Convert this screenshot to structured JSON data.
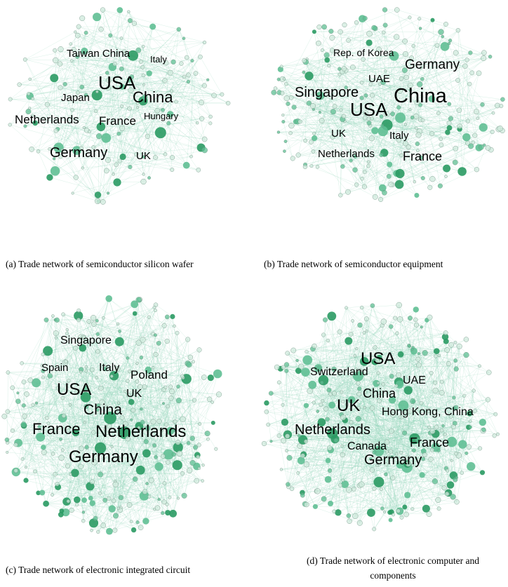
{
  "colors": {
    "edge": "#8fd3b6",
    "node_dark": "#2a9a63",
    "node_mid": "#5fbf93",
    "node_light": "#cfe9dc",
    "background": "#ffffff"
  },
  "panels": [
    {
      "caption": "(a) Trade network of semiconductor silicon wafer",
      "labels": [
        "Taiwan China",
        "Italy",
        "USA",
        "China",
        "Japan",
        "Hungary",
        "Netherlands",
        "France",
        "Germany",
        "UK"
      ]
    },
    {
      "caption": "(b) Trade network of semiconductor equipment",
      "labels": [
        "Rep. of Korea",
        "Germany",
        "UAE",
        "Singapore",
        "China",
        "USA",
        "UK",
        "Italy",
        "Netherlands",
        "France"
      ]
    },
    {
      "caption": "(c) Trade network of electronic integrated circuit",
      "labels": [
        "Singapore",
        "Spain",
        "Italy",
        "Poland",
        "USA",
        "UK",
        "China",
        "France",
        "Netherlands",
        "Germany"
      ]
    },
    {
      "caption_lines": [
        "(d) Trade network of electronic computer and",
        "components"
      ],
      "labels": [
        "USA",
        "Switzerland",
        "UAE",
        "China",
        "UK",
        "Hong Kong, China",
        "Netherlands",
        "Canada",
        "France",
        "Germany"
      ]
    }
  ]
}
